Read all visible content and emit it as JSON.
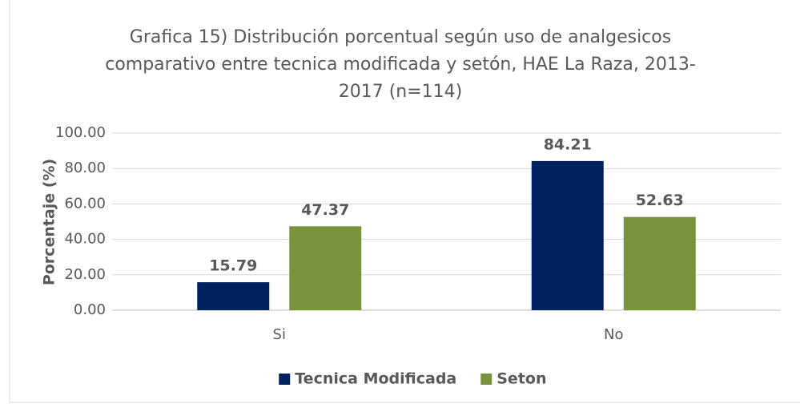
{
  "chart_data": {
    "type": "bar",
    "title": "Grafica 15) Distribución porcentual según uso de analgesicos comparativo entre tecnica modificada y setón, HAE La Raza, 2013-2017 (n=114)",
    "y_label": "Porcentaje (%)",
    "categories": [
      "Si",
      "No"
    ],
    "series": [
      {
        "name": "Tecnica Modificada",
        "color": "#002060",
        "values": [
          15.79,
          84.21
        ]
      },
      {
        "name": "Seton",
        "color": "#77933c",
        "values": [
          47.37,
          52.63
        ]
      }
    ],
    "ylim": [
      0,
      100
    ],
    "yticks": [
      {
        "value": 0,
        "label": "0.00"
      },
      {
        "value": 20,
        "label": "20.00"
      },
      {
        "value": 40,
        "label": "40.00"
      },
      {
        "value": 60,
        "label": "60.00"
      },
      {
        "value": 80,
        "label": "80.00"
      },
      {
        "value": 100,
        "label": "100.00"
      }
    ],
    "grid": true,
    "legend": "bottom"
  }
}
